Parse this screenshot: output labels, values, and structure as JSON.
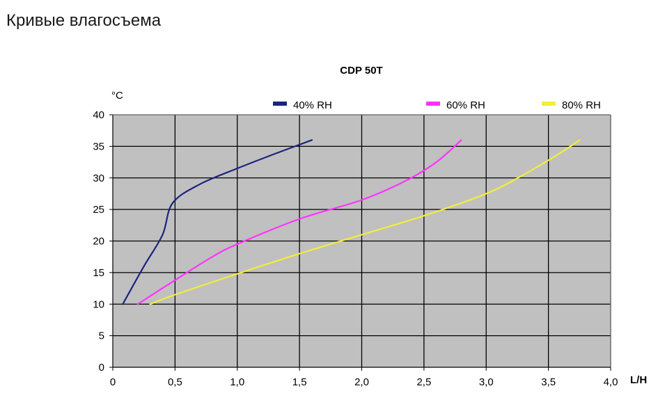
{
  "page": {
    "heading": "Кривые влагосъема"
  },
  "chart_data": {
    "type": "line",
    "title": "CDP 50T",
    "xlabel": "L/H",
    "ylabel": "°C",
    "xlim": [
      0,
      4.0
    ],
    "ylim": [
      0,
      40
    ],
    "x_ticks": [
      "0",
      "0,5",
      "1,0",
      "1,5",
      "2,0",
      "2,5",
      "3,0",
      "3,5",
      "4,0"
    ],
    "y_ticks": [
      "0",
      "5",
      "10",
      "15",
      "20",
      "25",
      "30",
      "35",
      "40"
    ],
    "grid": true,
    "plot_background": "#c0c0c0",
    "legend_position": "top",
    "series": [
      {
        "name": "40% RH",
        "color": "#1a237e",
        "points": [
          [
            0.08,
            10
          ],
          [
            0.25,
            16
          ],
          [
            0.4,
            21
          ],
          [
            0.48,
            26
          ],
          [
            0.7,
            29
          ],
          [
            1.0,
            31.5
          ],
          [
            1.3,
            33.8
          ],
          [
            1.6,
            36
          ]
        ]
      },
      {
        "name": "60% RH",
        "color": "#ff33ff",
        "points": [
          [
            0.2,
            10
          ],
          [
            0.5,
            13.8
          ],
          [
            0.8,
            17.5
          ],
          [
            1.0,
            19.5
          ],
          [
            1.5,
            23.5
          ],
          [
            2.0,
            26.5
          ],
          [
            2.35,
            29.5
          ],
          [
            2.6,
            32.5
          ],
          [
            2.8,
            36
          ]
        ]
      },
      {
        "name": "80% RH",
        "color": "#f2ee3a",
        "points": [
          [
            0.3,
            10
          ],
          [
            0.5,
            11.5
          ],
          [
            1.0,
            14.8
          ],
          [
            1.5,
            18
          ],
          [
            2.0,
            21
          ],
          [
            2.5,
            24
          ],
          [
            3.0,
            27.5
          ],
          [
            3.3,
            30.5
          ],
          [
            3.6,
            34
          ],
          [
            3.75,
            36
          ]
        ]
      }
    ]
  }
}
